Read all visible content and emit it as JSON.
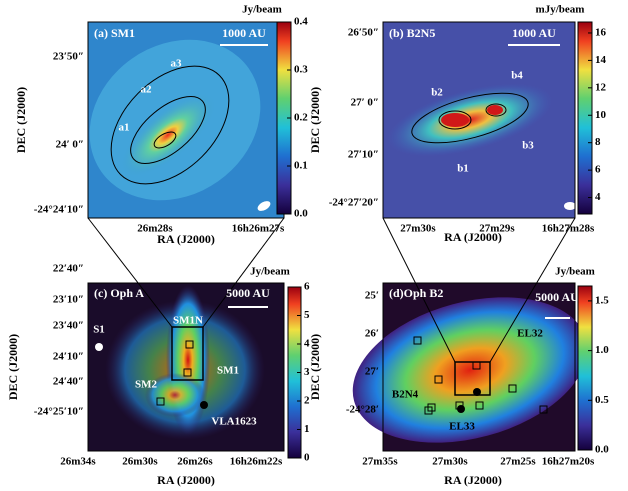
{
  "panels": [
    {
      "title": "(a) SM1",
      "scale_bar": "1000 AU",
      "unit": "Jy/beam",
      "xlabel": "RA (J2000)",
      "ylabel": "DEC (J2000)",
      "xticks": [
        "26m28s",
        "16h26m27s"
      ],
      "yticks": [
        "23′50″",
        "24′ 0″",
        "-24°24′10″"
      ],
      "clim": [
        0,
        0.4
      ],
      "cticks": [
        {
          "value": 0,
          "label": "0.0"
        },
        0.1,
        0.2,
        0.3,
        0.4
      ],
      "annotations": [
        "a1",
        "a2",
        "a3"
      ]
    },
    {
      "title": "(b) B2N5",
      "scale_bar": "1000 AU",
      "unit": "mJy/beam",
      "xlabel": "RA (J2000)",
      "ylabel": "DEC (J2000)",
      "xticks": [
        "27m30s",
        "27m29s",
        "16h27m28s"
      ],
      "yticks": [
        "26′50″",
        "27′ 0″",
        "27′10″",
        "-24°27′20″"
      ],
      "clim": [
        2.8,
        16.8
      ],
      "cticks": [
        4,
        6,
        8,
        10,
        12,
        14,
        16
      ],
      "annotations": [
        "b1",
        "b2",
        "b3",
        "b4"
      ]
    },
    {
      "title": "(c) Oph A",
      "scale_bar": "5000 AU",
      "unit": "Jy/beam",
      "xlabel": "RA (J2000)",
      "ylabel": "DEC (J2000)",
      "xticks": [
        "26m34s",
        "26m30s",
        "26m26s",
        "16h26m22s"
      ],
      "yticks": [
        "22′40″",
        "23′10″",
        "23′40″",
        "24′10″",
        "24′40″",
        "-24°25′10″"
      ],
      "clim": [
        0,
        6
      ],
      "cticks": [
        0,
        1,
        2,
        3,
        4,
        5,
        6
      ],
      "annotations": [
        "S1",
        "SM1N",
        "SM1",
        "SM2",
        "VLA1623"
      ]
    },
    {
      "title": "(d)Oph B2",
      "scale_bar": "5000 AU",
      "unit": "Jy/beam",
      "xlabel": "RA (J2000)",
      "ylabel": "DEC (J2000)",
      "xticks": [
        "27m35s",
        "27m30s",
        "27m25s",
        "16h27m20s"
      ],
      "yticks": [
        "25′",
        "26′",
        "27′",
        "-24°28′"
      ],
      "clim": [
        0,
        1.65
      ],
      "cticks": [
        {
          "value": 0,
          "label": "0.0"
        },
        0.5,
        {
          "value": 1,
          "label": "1.0"
        },
        1.5
      ],
      "annotations": [
        "EL32",
        "B2N4",
        "EL33"
      ]
    }
  ]
}
